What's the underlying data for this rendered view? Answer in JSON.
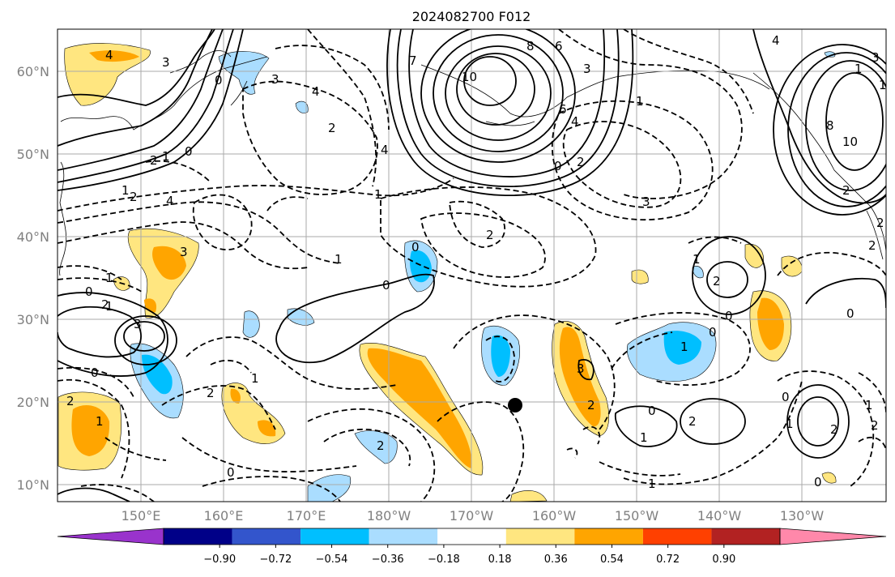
{
  "title": "2024082700 F012",
  "lat_labels": [
    "10°N",
    "20°N",
    "30°N",
    "40°N",
    "50°N",
    "60°N"
  ],
  "lon_labels": [
    "150°E",
    "160°E",
    "170°E",
    "180°W",
    "170°W",
    "160°W",
    "150°W",
    "140°W",
    "130°W"
  ],
  "colorbar": {
    "tick_labels": [
      "−0.90",
      "−0.72",
      "−0.54",
      "−0.36",
      "−0.18",
      "0.18",
      "0.36",
      "0.54",
      "0.72",
      "0.90"
    ],
    "colors": [
      "#9933cc",
      "#000088",
      "#3355cc",
      "#00bfff",
      "#aaddff",
      "#ffffff",
      "#ffe680",
      "#ffa500",
      "#ff4000",
      "#b22222",
      "#ff88aa"
    ]
  },
  "contour_labels": [
    "4",
    "3",
    "0",
    "3",
    "4",
    "2",
    "2",
    "1",
    "0",
    "1",
    "2",
    "4",
    "3",
    "1",
    "0",
    "1",
    "2",
    "3",
    "0",
    "0",
    "1",
    "2",
    "2",
    "1",
    "0",
    "10",
    "8",
    "6",
    "7",
    "6",
    "4",
    "4",
    "0",
    "1",
    "2",
    "3",
    "2",
    "3",
    "1",
    "1",
    "2",
    "0",
    "0",
    "0",
    "1",
    "2",
    "3",
    "2",
    "0",
    "1",
    "2",
    "0",
    "1",
    "2",
    "1",
    "2",
    "2",
    "4",
    "0",
    "8",
    "10",
    "1",
    "1",
    "2",
    "3",
    "2",
    "1",
    "0",
    "1"
  ],
  "marker": "storm-center"
}
